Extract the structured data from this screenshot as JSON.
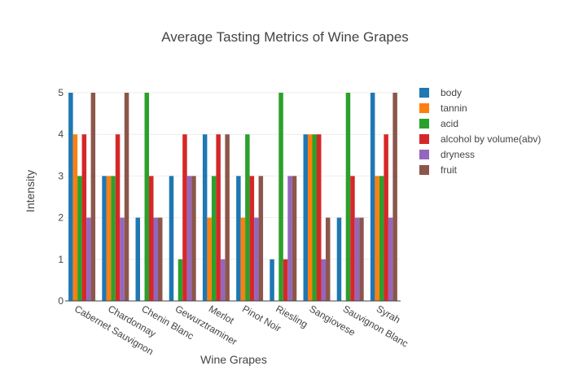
{
  "chart_data": {
    "type": "bar",
    "title": "Average Tasting Metrics of Wine Grapes",
    "xlabel": "Wine Grapes",
    "ylabel": "Intensity",
    "ylim": [
      0,
      5
    ],
    "yticks": [
      0,
      1,
      2,
      3,
      4,
      5
    ],
    "grid": true,
    "legend_position": "right",
    "categories": [
      "Cabernet Sauvignon",
      "Chardonnay",
      "Chenin Blanc",
      "Gewurztraminer",
      "Merlot",
      "Pinot Noir",
      "Riesling",
      "Sangiovese",
      "Sauvignon Blanc",
      "Syrah"
    ],
    "series": [
      {
        "name": "body",
        "color": "#1f77b4",
        "values": [
          5,
          3,
          2,
          3,
          4,
          3,
          1,
          4,
          2,
          5
        ]
      },
      {
        "name": "tannin",
        "color": "#ff7f0e",
        "values": [
          4,
          3,
          0,
          0,
          2,
          2,
          0,
          4,
          0,
          3
        ]
      },
      {
        "name": "acid",
        "color": "#2ca02c",
        "values": [
          3,
          3,
          5,
          1,
          3,
          4,
          5,
          4,
          5,
          3
        ]
      },
      {
        "name": "alcohol by volume(abv)",
        "color": "#d62728",
        "values": [
          4,
          4,
          3,
          4,
          4,
          3,
          1,
          4,
          3,
          4
        ]
      },
      {
        "name": "dryness",
        "color": "#9467bd",
        "values": [
          2,
          2,
          2,
          3,
          1,
          2,
          3,
          1,
          2,
          2
        ]
      },
      {
        "name": "fruit",
        "color": "#8c564b",
        "values": [
          5,
          5,
          2,
          3,
          4,
          3,
          3,
          2,
          2,
          5
        ]
      }
    ]
  }
}
